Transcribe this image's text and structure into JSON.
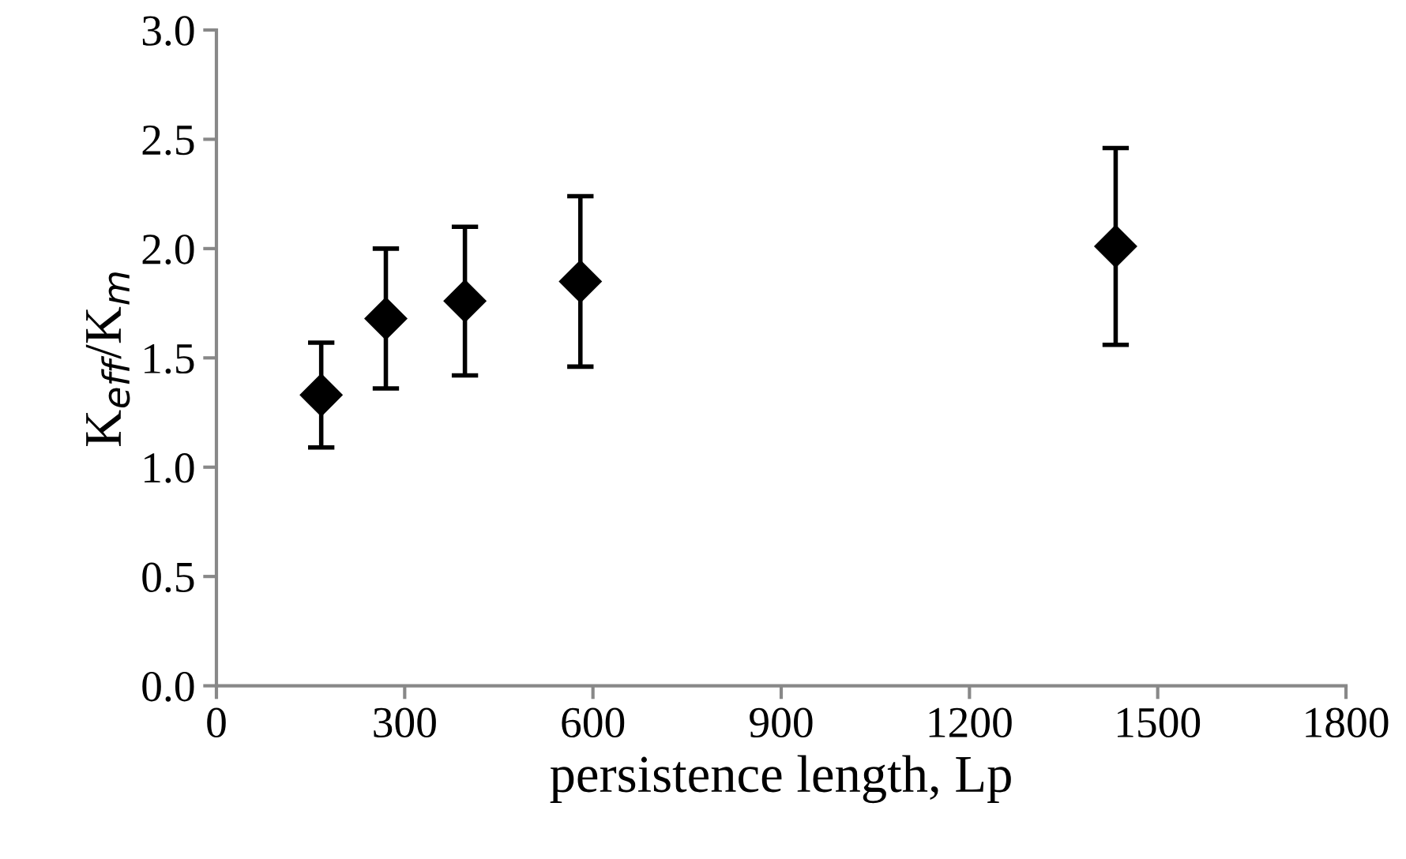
{
  "chart_data": {
    "type": "scatter",
    "xlabel": "persistence length, Lp",
    "ylabel": "K$_{eff}$/K$_{m}$",
    "x": [
      167,
      270,
      396,
      580,
      1433
    ],
    "series": [
      {
        "color": "#000000",
        "values": [
          1.33,
          1.68,
          1.76,
          1.85,
          2.01
        ],
        "errors": [
          0.24,
          0.32,
          0.34,
          0.39,
          0.45
        ]
      }
    ],
    "marker": "diamond",
    "xlim": [
      0,
      1800
    ],
    "xticks": [
      0,
      300,
      600,
      900,
      1200,
      1500,
      1800
    ],
    "ylim": [
      0,
      3
    ],
    "yticks": [
      {
        "value": 0,
        "label": "0.0"
      },
      {
        "value": 0.5,
        "label": "0.5"
      },
      {
        "value": 1,
        "label": "1.0"
      },
      {
        "value": 1.5,
        "label": "1.5"
      },
      {
        "value": 2,
        "label": "2.0"
      },
      {
        "value": 2.5,
        "label": "2.5"
      },
      {
        "value": 3,
        "label": "3.0"
      }
    ],
    "grid": false,
    "legend": false
  }
}
